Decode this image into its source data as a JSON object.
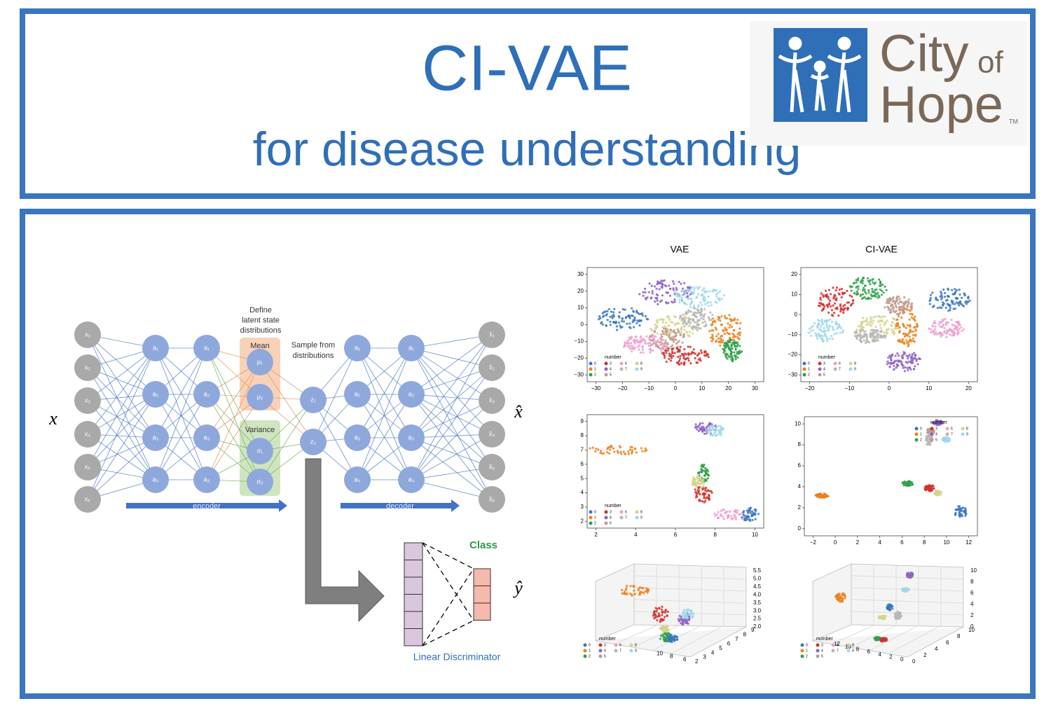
{
  "header": {
    "title": "CI-VAE",
    "subtitle": "for disease understanding",
    "logo": {
      "city": "City",
      "of": "of",
      "hope": "Hope",
      "tm": "TM"
    }
  },
  "diagram": {
    "input_label": "x",
    "output_label": "x̂",
    "class_output_label": "ŷ",
    "inputs": [
      "x₁",
      "x₂",
      "x₃",
      "x₄",
      "x₅",
      "x₆"
    ],
    "encoder_layer1": [
      "a₁",
      "a₂",
      "a₃",
      "a₄"
    ],
    "encoder_layer2": [
      "a₁",
      "a₂",
      "a₃",
      "a₄"
    ],
    "define_note": [
      "Define",
      "latent state",
      "distributions"
    ],
    "mean_label": "Mean",
    "means": [
      "μ₁",
      "μ₂"
    ],
    "variance_label": "Variance",
    "variances": [
      "σ₁",
      "σ₂"
    ],
    "sample_note": [
      "Sample from",
      "distributions"
    ],
    "latents": [
      "z₁",
      "z₂"
    ],
    "decoder_layer1": [
      "a₁",
      "a₂",
      "a₃",
      "a₄"
    ],
    "decoder_layer2": [
      "a₁",
      "a₂",
      "a₃",
      "a₄"
    ],
    "outputs": [
      "x̂₁",
      "x̂₂",
      "x̂₃",
      "x̂₄",
      "x̂₅",
      "x̂₆"
    ],
    "encoder_label": "encoder",
    "decoder_label": "decoder",
    "class_label": "Class",
    "discriminator_label": "Linear Discriminator"
  },
  "plots": {
    "column_titles": [
      "VAE",
      "CI-VAE"
    ],
    "legend_title": "number",
    "legend": [
      "0",
      "1",
      "2",
      "3",
      "4",
      "5",
      "6",
      "7",
      "8",
      "9"
    ],
    "colors": [
      "#3a78c0",
      "#f07f1b",
      "#2fa04a",
      "#d1302e",
      "#8e62c4",
      "#c09a8c",
      "#ef9fcf",
      "#b5b5b5",
      "#d4d48c",
      "#9fd8ea"
    ],
    "panels": [
      {
        "xticks": [
          "−30",
          "−20",
          "−10",
          "0",
          "10",
          "20",
          "30"
        ],
        "yticks": [
          "30",
          "20",
          "10",
          "0",
          "−10",
          "−20",
          "−30"
        ]
      },
      {
        "xticks": [
          "−20",
          "−10",
          "0",
          "10",
          "20"
        ],
        "yticks": [
          "20",
          "10",
          "0",
          "−10",
          "−20",
          "−30"
        ]
      },
      {
        "xticks": [
          "2",
          "4",
          "6",
          "8",
          "10"
        ],
        "yticks": [
          "9",
          "8",
          "7",
          "6",
          "5",
          "4",
          "3",
          "2"
        ]
      },
      {
        "xticks": [
          "−2",
          "0",
          "2",
          "4",
          "6",
          "8",
          "10",
          "12"
        ],
        "yticks": [
          "10",
          "8",
          "6",
          "4",
          "2",
          "0"
        ]
      },
      {
        "xticks": [
          "10",
          "8",
          "6"
        ],
        "yticks": [
          "2",
          "3",
          "4",
          "5",
          "6",
          "7",
          "8",
          "9"
        ],
        "zticks": [
          "5.5",
          "5.0",
          "4.5",
          "4.0",
          "3.5",
          "3.0",
          "2.5",
          "2.0"
        ]
      },
      {
        "xticks": [
          "12",
          "10",
          "8",
          "6",
          "4",
          "2",
          "0"
        ],
        "yticks": [
          "0",
          "2",
          "4",
          "6",
          "8",
          "10"
        ],
        "zticks": [
          "10",
          "8",
          "6",
          "4",
          "2",
          "0"
        ]
      }
    ]
  }
}
